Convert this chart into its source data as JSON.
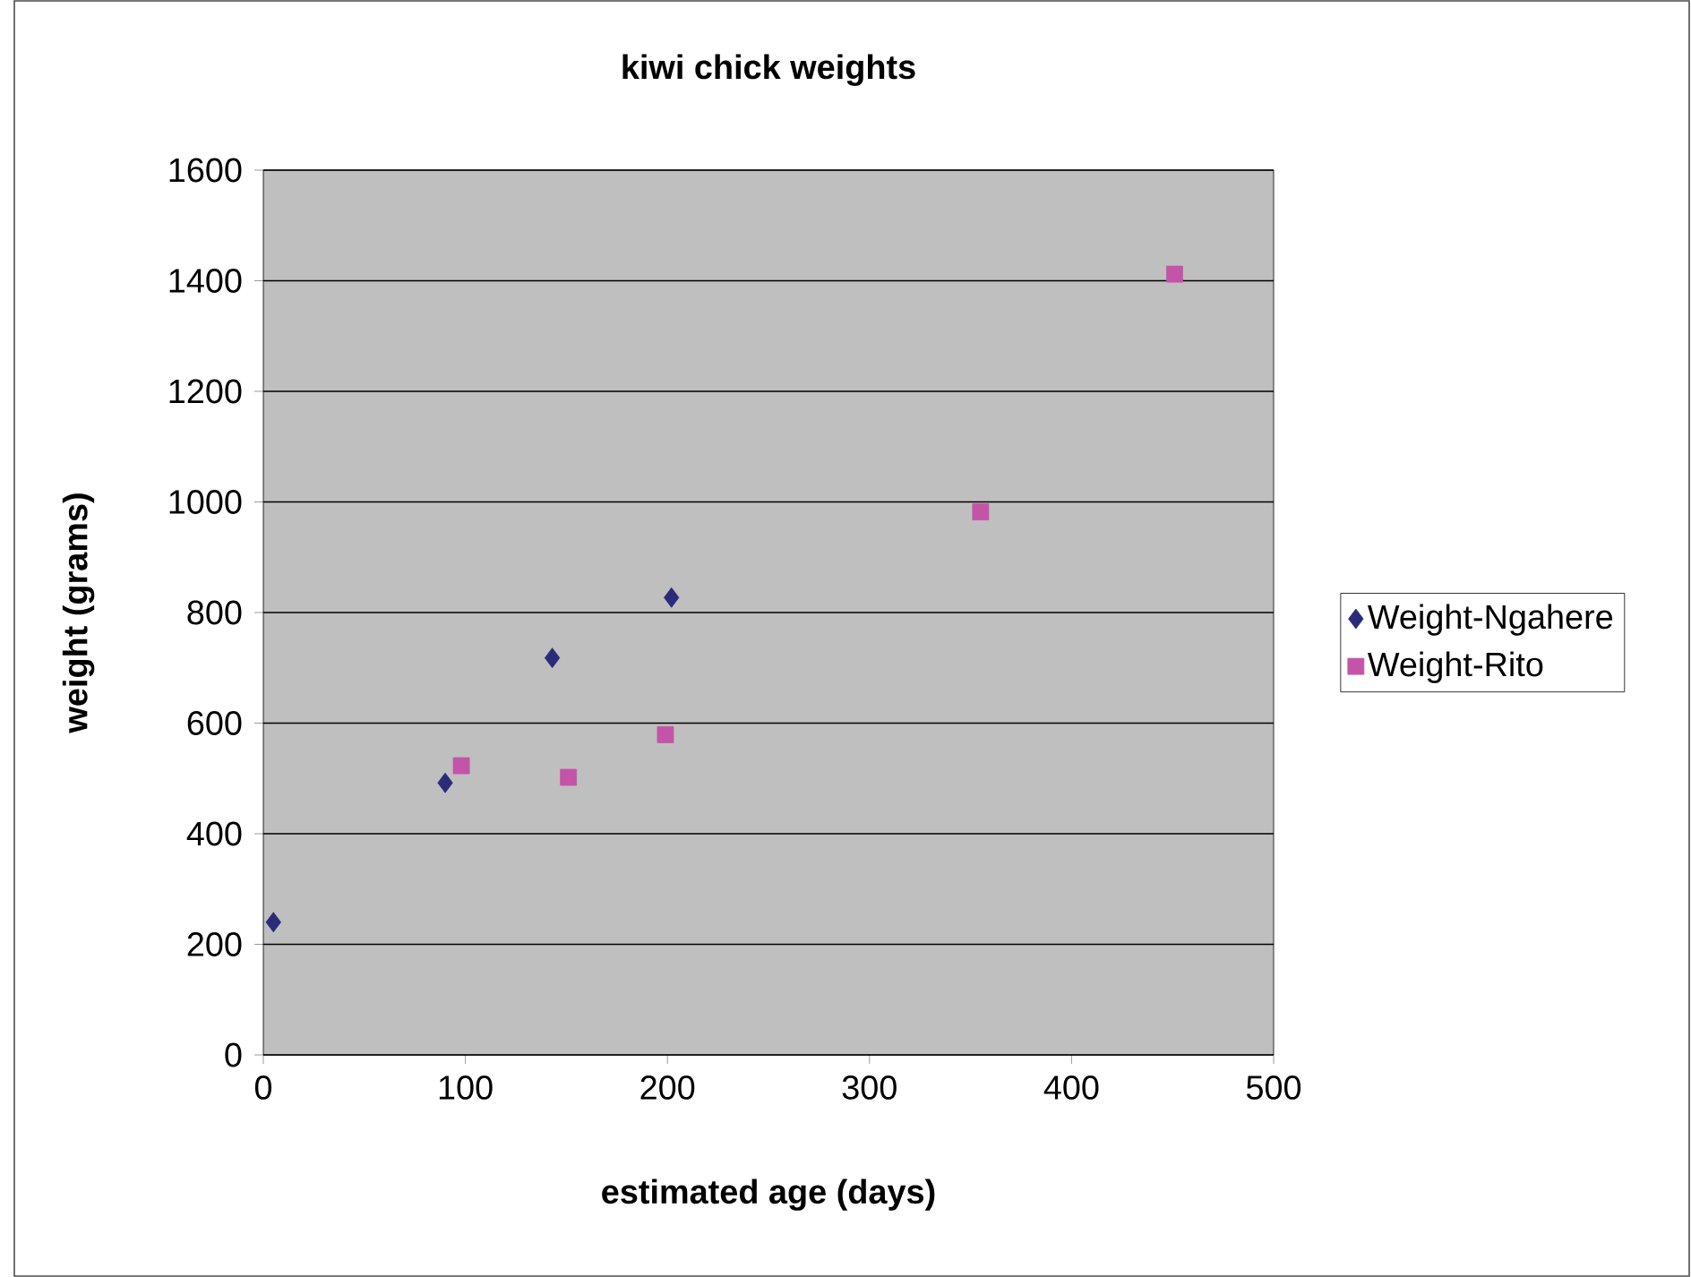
{
  "chart_data": {
    "type": "scatter",
    "title": "kiwi chick weights",
    "xlabel": "estimated age (days)",
    "ylabel": "weight (grams)",
    "xlim": [
      0,
      500
    ],
    "xticks": [
      0,
      100,
      200,
      300,
      400,
      500
    ],
    "ylim": [
      0,
      1600
    ],
    "yticks": [
      0,
      200,
      400,
      600,
      800,
      1000,
      1200,
      1400,
      1600
    ],
    "grid": "y",
    "legend": "right",
    "series": [
      {
        "name": "Weight-Ngahere",
        "color": "#2b2b7a",
        "marker": "diamond",
        "x": [
          5,
          90,
          143,
          202
        ],
        "values": [
          240,
          492,
          718,
          827
        ]
      },
      {
        "name": "Weight-Rito",
        "color": "#c354a8",
        "marker": "square",
        "x": [
          98,
          151,
          199,
          355,
          451
        ],
        "values": [
          523,
          502,
          579,
          982,
          1412
        ]
      }
    ]
  }
}
